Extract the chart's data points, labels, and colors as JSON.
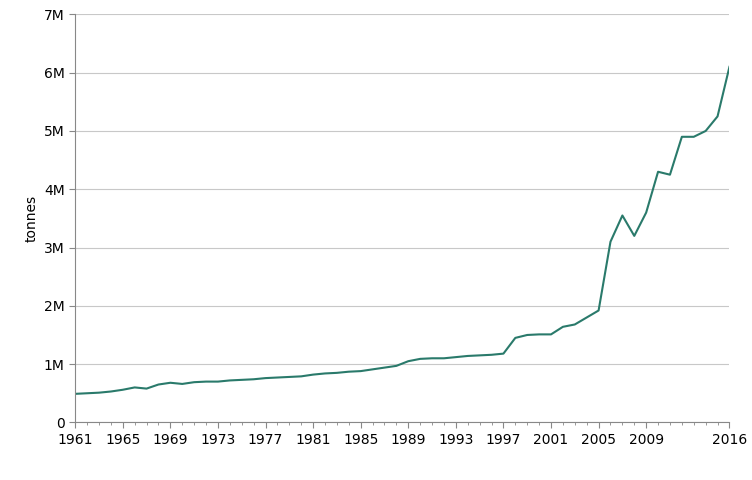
{
  "years": [
    1961,
    1962,
    1963,
    1964,
    1965,
    1966,
    1967,
    1968,
    1969,
    1970,
    1971,
    1972,
    1973,
    1974,
    1975,
    1976,
    1977,
    1978,
    1979,
    1980,
    1981,
    1982,
    1983,
    1984,
    1985,
    1986,
    1987,
    1988,
    1989,
    1990,
    1991,
    1992,
    1993,
    1994,
    1995,
    1996,
    1997,
    1998,
    1999,
    2000,
    2001,
    2002,
    2003,
    2004,
    2005,
    2006,
    2007,
    2008,
    2009,
    2010,
    2011,
    2012,
    2013,
    2014,
    2015,
    2016
  ],
  "values": [
    490000,
    500000,
    510000,
    530000,
    560000,
    600000,
    580000,
    650000,
    680000,
    660000,
    690000,
    700000,
    700000,
    720000,
    730000,
    740000,
    760000,
    770000,
    780000,
    790000,
    820000,
    840000,
    850000,
    870000,
    880000,
    910000,
    940000,
    970000,
    1050000,
    1090000,
    1100000,
    1100000,
    1120000,
    1140000,
    1150000,
    1160000,
    1180000,
    1450000,
    1500000,
    1510000,
    1510000,
    1640000,
    1680000,
    1800000,
    1920000,
    3100000,
    3550000,
    3200000,
    3600000,
    4300000,
    4250000,
    4900000,
    4900000,
    5000000,
    5250000,
    6100000
  ],
  "line_color": "#2a7a6b",
  "ylabel": "tonnes",
  "ylim": [
    0,
    7000000
  ],
  "xlim_min": 1961,
  "xlim_max": 2016,
  "yticks": [
    0,
    1000000,
    2000000,
    3000000,
    4000000,
    5000000,
    6000000,
    7000000
  ],
  "ytick_labels": [
    "0",
    "1M",
    "2M",
    "3M",
    "4M",
    "5M",
    "6M",
    "7M"
  ],
  "xtick_major": [
    1961,
    1965,
    1969,
    1973,
    1977,
    1981,
    1985,
    1989,
    1993,
    1997,
    2001,
    2005,
    2009,
    2016
  ],
  "background_color": "#ffffff",
  "grid_color": "#c8c8c8",
  "line_width": 1.5,
  "spine_color": "#888888"
}
